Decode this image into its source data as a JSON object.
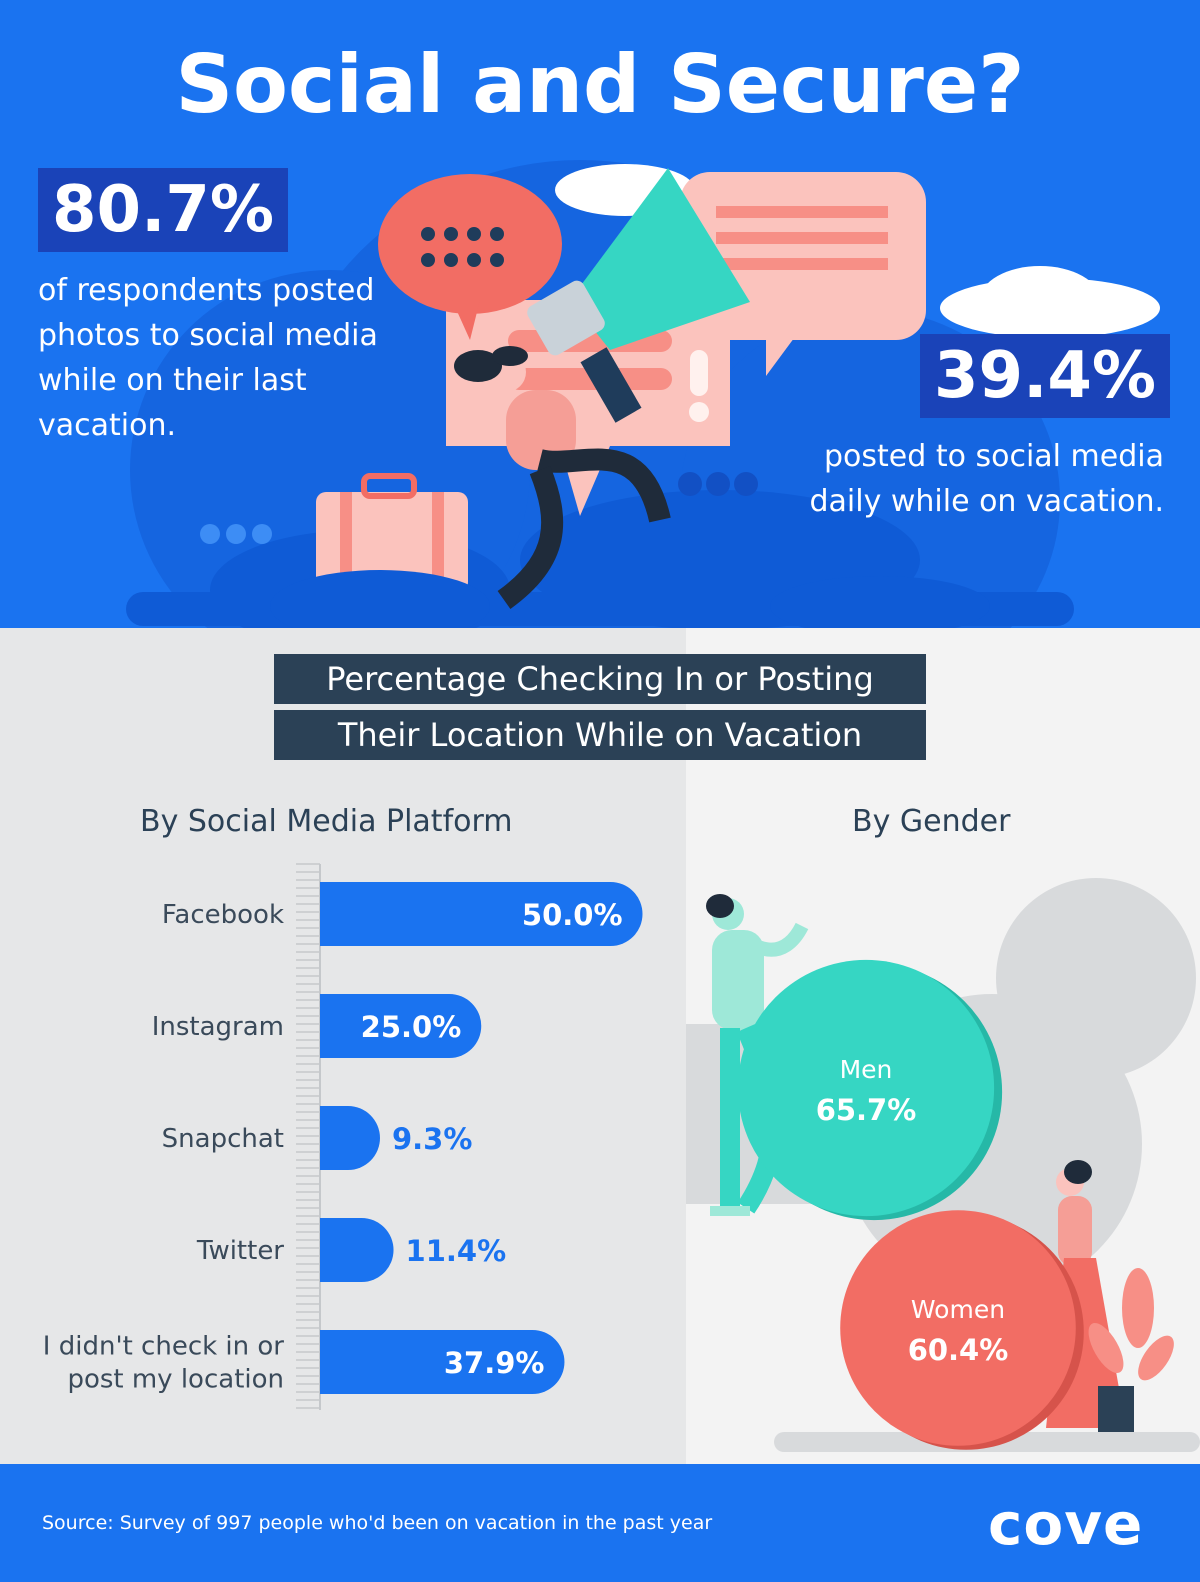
{
  "title": "Social and Secure?",
  "stats": {
    "left": {
      "value": "80.7%",
      "text": "of respondents posted photos to social media while on their last vacation."
    },
    "right": {
      "value": "39.4%",
      "text": "posted to social media daily while on vacation."
    }
  },
  "section_title": {
    "line1": "Percentage Checking In or Posting",
    "line2": "Their Location While on Vacation"
  },
  "colors": {
    "blue": "#1a73f0",
    "navy": "#2b4156",
    "teal": "#36d6c3",
    "coral": "#f26d64"
  },
  "chart_data": [
    {
      "type": "bar",
      "title": "By Social Media Platform",
      "categories": [
        "Facebook",
        "Instagram",
        "Snapchat",
        "Twitter",
        "I didn't check in or post my location"
      ],
      "category_lines": [
        [
          "Facebook"
        ],
        [
          "Instagram"
        ],
        [
          "Snapchat"
        ],
        [
          "Twitter"
        ],
        [
          "I didn't check in or",
          "post my location"
        ]
      ],
      "values": [
        50.0,
        25.0,
        9.3,
        11.4,
        37.9
      ],
      "labels": [
        "50.0%",
        "25.0%",
        "9.3%",
        "11.4%",
        "37.9%"
      ],
      "orientation": "horizontal",
      "unit": "%"
    },
    {
      "type": "bubble",
      "title": "By Gender",
      "categories": [
        "Men",
        "Women"
      ],
      "values": [
        65.7,
        60.4
      ],
      "labels": [
        "65.7%",
        "60.4%"
      ],
      "colors": [
        "#36d6c3",
        "#f26d64"
      ]
    }
  ],
  "footer": {
    "source": "Source: Survey of 997 people who'd been on vacation in the past year",
    "logo": "cove"
  }
}
